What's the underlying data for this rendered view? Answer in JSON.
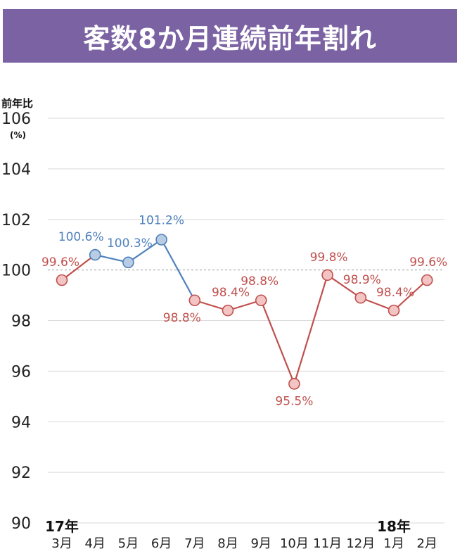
{
  "title": "客数8か月連続前年割れ",
  "chart_data": {
    "type": "line",
    "title": "客数8か月連続前年割れ",
    "ylabel": "前年比",
    "yunit": "(%)",
    "ylim": [
      90,
      106
    ],
    "yticks": [
      90,
      92,
      94,
      96,
      98,
      100,
      102,
      104,
      106
    ],
    "reference_line": 100,
    "categories": [
      "3月",
      "4月",
      "5月",
      "6月",
      "7月",
      "8月",
      "9月",
      "10月",
      "11月",
      "12月",
      "1月",
      "2月"
    ],
    "year_labels": [
      {
        "index": 0,
        "text": "17年"
      },
      {
        "index": 10,
        "text": "18年"
      }
    ],
    "values": [
      99.6,
      100.6,
      100.3,
      101.2,
      98.8,
      98.4,
      98.8,
      95.5,
      99.8,
      98.9,
      98.4,
      99.6
    ],
    "labels": [
      "99.6%",
      "100.6%",
      "100.3%",
      "101.2%",
      "98.8%",
      "98.4%",
      "98.8%",
      "95.5%",
      "99.8%",
      "98.9%",
      "98.4%",
      "99.6%"
    ],
    "label_position": [
      "above",
      "above",
      "above",
      "above",
      "below",
      "above",
      "above",
      "below",
      "above",
      "above",
      "above",
      "above"
    ],
    "point_colors": [
      "red",
      "blue",
      "blue",
      "blue",
      "red",
      "red",
      "red",
      "red",
      "red",
      "red",
      "red",
      "red"
    ]
  },
  "colors": {
    "title_bg": "#7b62a3",
    "red_line": "#c0504d",
    "red_fill": "#f2c4c4",
    "red_text": "#c0504d",
    "blue_line": "#4f81bd",
    "blue_fill": "#b8cce4",
    "blue_text": "#4f81bd",
    "grid": "#d9d9d9",
    "ref": "#999999"
  }
}
